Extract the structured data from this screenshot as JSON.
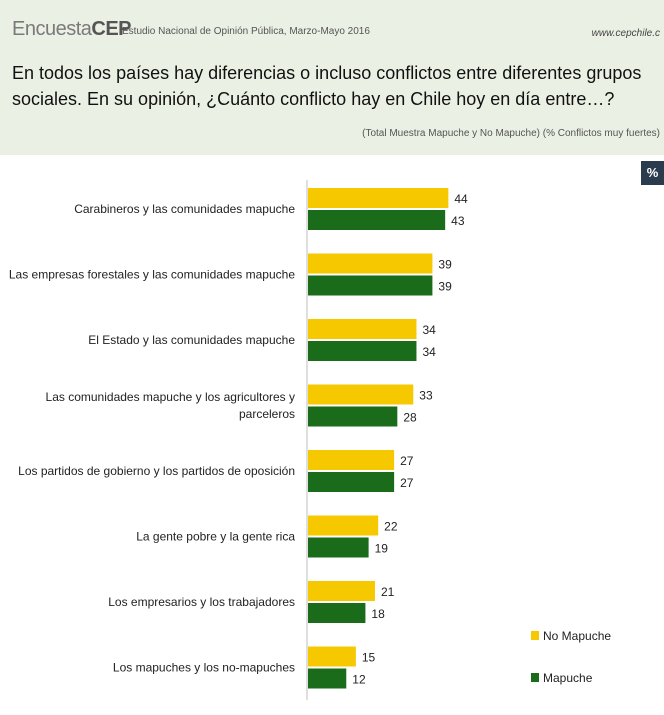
{
  "header": {
    "brand_thin": "Encuesta",
    "brand_bold": "CEP",
    "study": "Estudio Nacional de Opinión Pública, Marzo-Mayo 2016",
    "site": "www.cepchile.c",
    "question": "En todos los países hay diferencias o incluso conflictos entre diferentes grupos sociales.  En su opinión, ¿Cuánto conflicto hay en Chile hoy en día entre…?",
    "subtitle": "(Total Muestra Mapuche y No Mapuche) (% Conflictos muy fuertes)",
    "pct_badge": "%"
  },
  "chart_data": {
    "type": "bar",
    "orientation": "horizontal",
    "categories": [
      [
        "Carabineros y las comunidades mapuche"
      ],
      [
        "Las empresas forestales y las comunidades mapuche"
      ],
      [
        "El Estado y las comunidades mapuche"
      ],
      [
        "Las comunidades mapuche y los agricultores y",
        "parceleros"
      ],
      [
        "Los partidos de gobierno y los partidos de oposición"
      ],
      [
        "La gente pobre y la gente rica"
      ],
      [
        "Los empresarios y los trabajadores"
      ],
      [
        "Los mapuches y los no-mapuches"
      ]
    ],
    "series": [
      {
        "name": "No Mapuche",
        "color": "#f5c800",
        "values": [
          44,
          39,
          34,
          33,
          27,
          22,
          21,
          15
        ]
      },
      {
        "name": "Mapuche",
        "color": "#1a6b1a",
        "values": [
          43,
          39,
          34,
          28,
          27,
          19,
          18,
          12
        ]
      }
    ],
    "xlim": [
      0,
      100
    ],
    "grid": false,
    "legend_position": "bottom-right"
  }
}
